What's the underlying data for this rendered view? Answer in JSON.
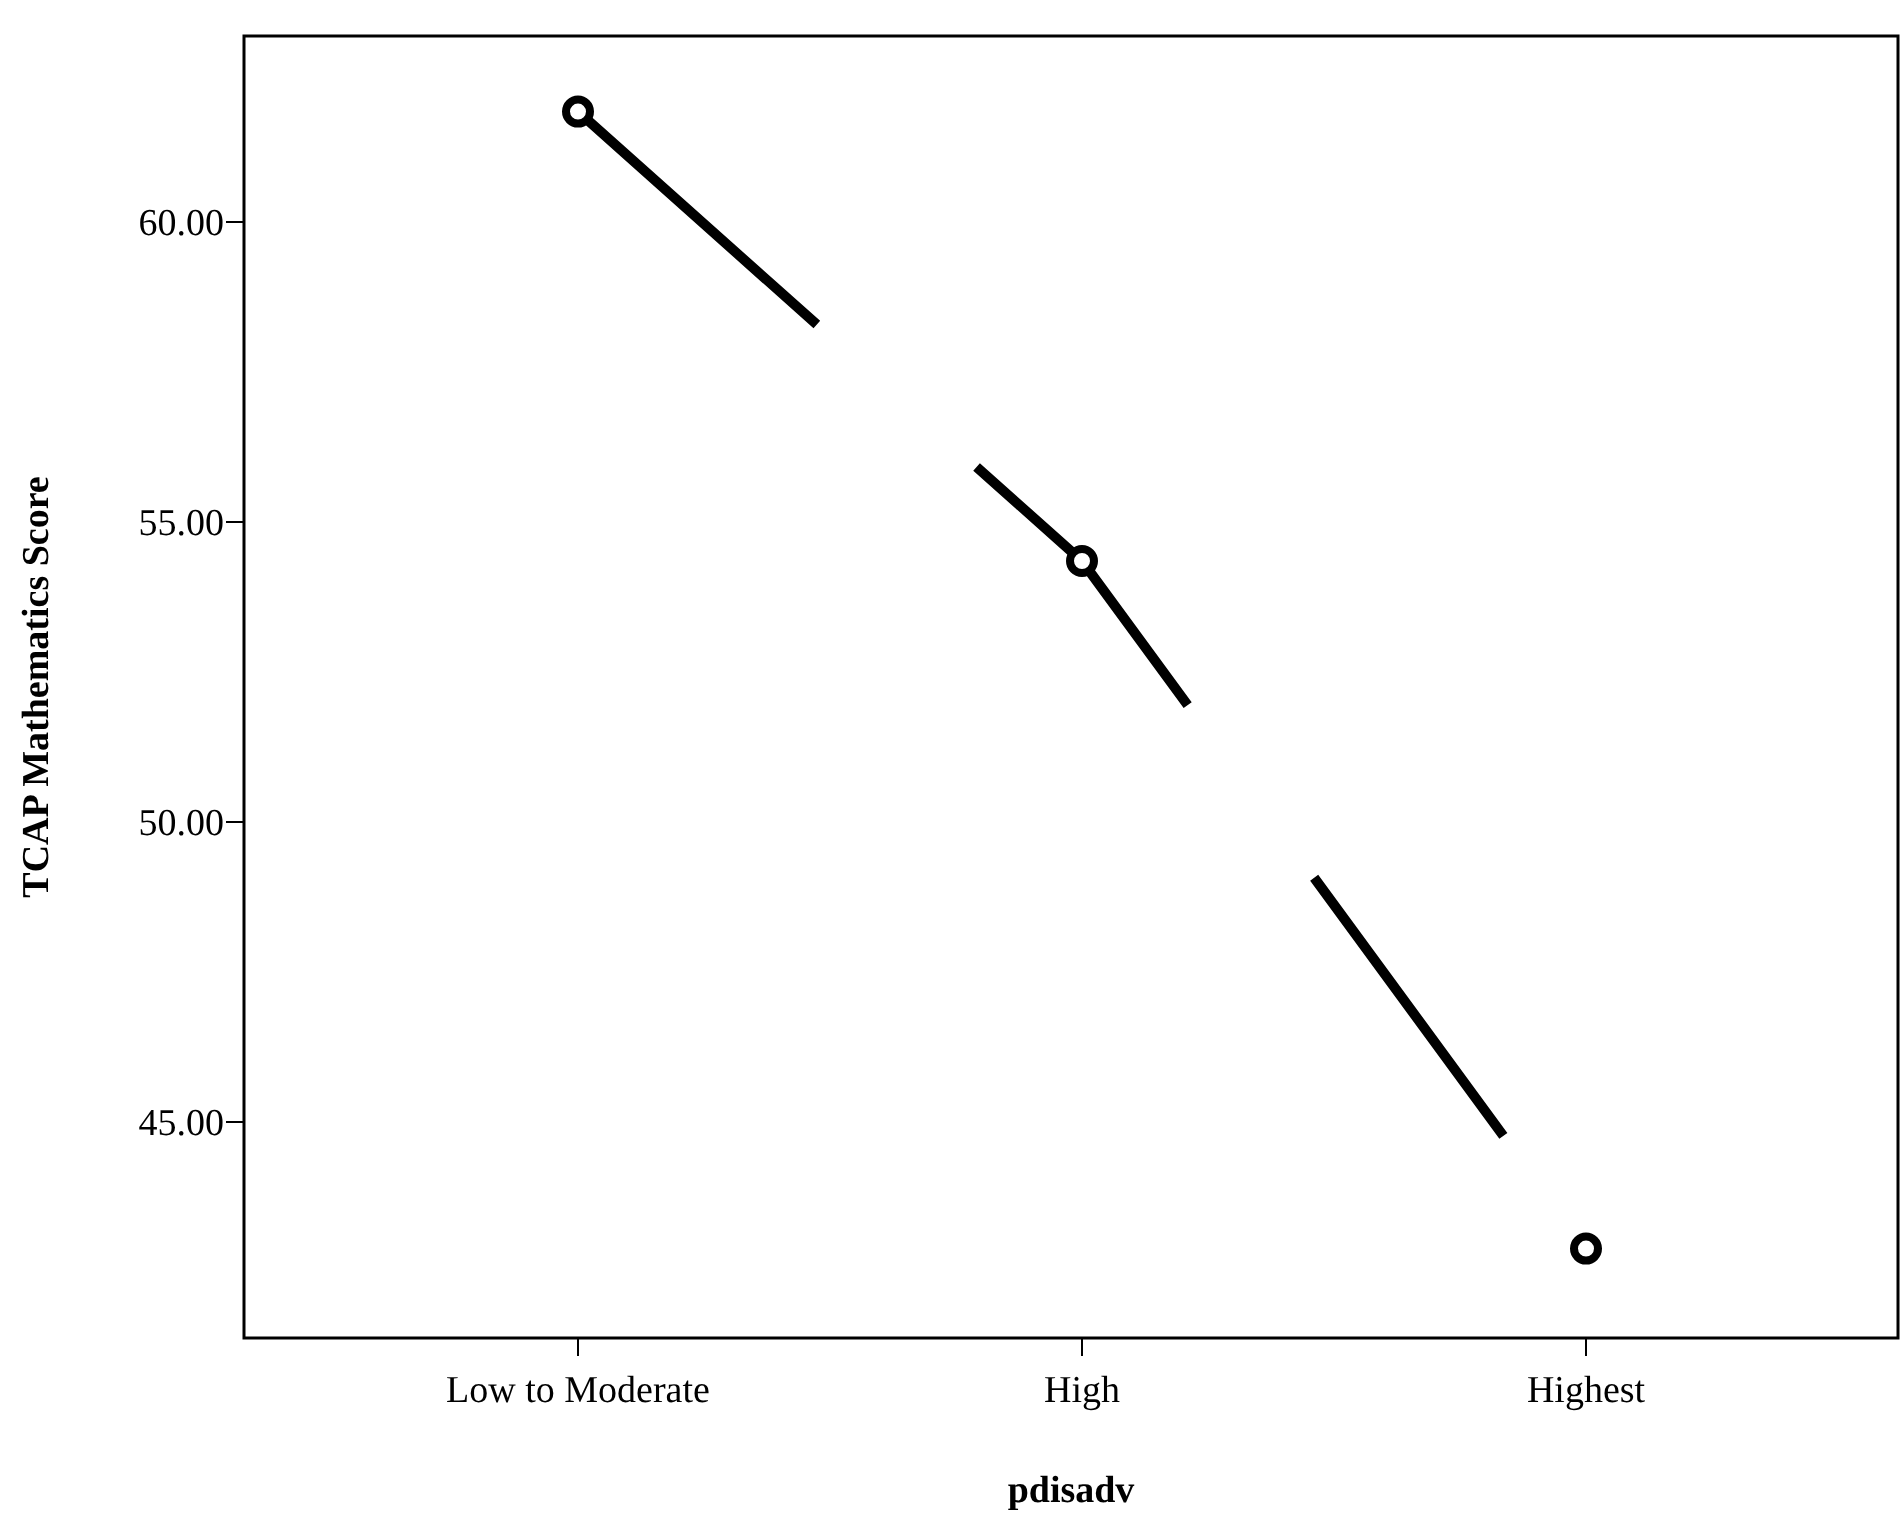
{
  "chart_data": {
    "type": "line",
    "xlabel": "pdisadv",
    "ylabel": "TCAP Mathematics Score",
    "categories": [
      "Low to Moderate",
      "High",
      "Highest"
    ],
    "series": [
      {
        "color": "#000000",
        "values": [
          61.84,
          54.35,
          42.89
        ]
      }
    ],
    "ylim": [
      41.4,
      63.1
    ],
    "yticks": [
      {
        "value": 45,
        "label": "45.00"
      },
      {
        "value": 50,
        "label": "50.00"
      },
      {
        "value": 55,
        "label": "55.00"
      },
      {
        "value": 60,
        "label": "60.00"
      }
    ],
    "grid": false,
    "marker": "circle",
    "line_style": "dashed"
  }
}
